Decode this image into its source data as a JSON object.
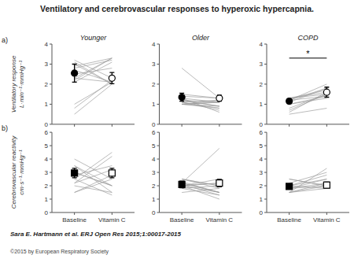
{
  "title": "Ventilatory and cerebrovascular responses to hyperoxic hypercapnia.",
  "subtitle": "Sara E. Hartmann et al. ERJ Open Res 2015;1:00017-2015",
  "copyright": "©2015 by European Respiratory Society",
  "chart_data": [
    {
      "type": "line",
      "title": "Younger",
      "panel_label": "a)",
      "ylabel": "Ventilatory response\nL·min⁻¹·mmHg⁻¹",
      "categories": [
        null,
        null
      ],
      "tick_labels": "y",
      "ylim": [
        0,
        4
      ],
      "yticks": [
        0,
        1,
        2,
        3,
        4
      ],
      "grid": false,
      "color": "#999999",
      "series": [
        {
          "values": [
            2.2,
            3.3
          ]
        },
        {
          "values": [
            2.3,
            2.1
          ]
        },
        {
          "values": [
            2.1,
            3.1
          ]
        },
        {
          "values": [
            2.9,
            3.3
          ]
        },
        {
          "values": [
            3.1,
            2.0
          ]
        },
        {
          "values": [
            2.8,
            3.2
          ]
        },
        {
          "values": [
            2.5,
            2.8
          ]
        },
        {
          "values": [
            3.0,
            2.0
          ]
        },
        {
          "values": [
            2.3,
            3.3
          ]
        },
        {
          "values": [
            2.7,
            2.1
          ]
        },
        {
          "values": [
            3.2,
            2.3
          ]
        },
        {
          "values": [
            0.8,
            2.2
          ]
        },
        {
          "values": [
            0.5,
            2.0
          ]
        },
        {
          "values": [
            1.0,
            2.1
          ]
        },
        {
          "type": "scatter",
          "marker": "circle",
          "colors": [
            "#000000",
            "#ffffff"
          ],
          "values": [
            2.55,
            2.3
          ],
          "errors": [
            0.45,
            0.28
          ]
        }
      ]
    },
    {
      "type": "line",
      "title": "Older",
      "categories": [
        null,
        null
      ],
      "tick_labels": "y",
      "ylim": [
        0,
        4
      ],
      "yticks": [
        0,
        1,
        2,
        3,
        4
      ],
      "grid": false,
      "color": "#999999",
      "series": [
        {
          "values": [
            1.0,
            0.9
          ]
        },
        {
          "values": [
            1.1,
            0.7
          ]
        },
        {
          "values": [
            1.0,
            0.8
          ]
        },
        {
          "values": [
            1.2,
            1.1
          ]
        },
        {
          "values": [
            1.5,
            1.3
          ]
        },
        {
          "values": [
            1.0,
            1.2
          ]
        },
        {
          "values": [
            1.3,
            0.6
          ]
        },
        {
          "values": [
            1.1,
            0.8
          ]
        },
        {
          "values": [
            1.0,
            1.1
          ]
        },
        {
          "values": [
            1.4,
            1.3
          ]
        },
        {
          "values": [
            1.2,
            0.9
          ]
        },
        {
          "values": [
            1.3,
            1.1
          ]
        },
        {
          "values": [
            2.8,
            1.3
          ]
        },
        {
          "values": [
            1.1,
            1.2
          ]
        },
        {
          "values": [
            1.0,
            1.1
          ]
        },
        {
          "values": [
            1.2,
            0.9
          ]
        },
        {
          "type": "scatter",
          "marker": "circle",
          "colors": [
            "#000000",
            "#ffffff"
          ],
          "values": [
            1.35,
            1.3
          ],
          "errors": [
            0.2,
            0.15
          ]
        }
      ]
    },
    {
      "type": "line",
      "title": "COPD",
      "categories": [
        null,
        null
      ],
      "tick_labels": "y",
      "ylim": [
        0,
        4
      ],
      "yticks": [
        0,
        1,
        2,
        3,
        4
      ],
      "grid": false,
      "color": "#999999",
      "significance": {
        "label": "*",
        "y": 3.3
      },
      "series": [
        {
          "values": [
            0.7,
            1.5
          ]
        },
        {
          "values": [
            1.0,
            1.4
          ]
        },
        {
          "values": [
            1.2,
            1.8
          ]
        },
        {
          "values": [
            1.3,
            1.5
          ]
        },
        {
          "values": [
            0.6,
            1.6
          ]
        },
        {
          "values": [
            1.2,
            2.0
          ]
        },
        {
          "values": [
            1.0,
            1.3
          ]
        },
        {
          "values": [
            1.3,
            1.7
          ]
        },
        {
          "values": [
            0.8,
            1.5
          ]
        },
        {
          "values": [
            1.2,
            1.4
          ]
        },
        {
          "values": [
            1.3,
            1.6
          ]
        },
        {
          "values": [
            1.1,
            1.8
          ]
        },
        {
          "values": [
            0.5,
            0.8
          ]
        },
        {
          "type": "scatter",
          "marker": "circle",
          "colors": [
            "#000000",
            "#ffffff"
          ],
          "values": [
            1.15,
            1.6
          ],
          "errors": [
            0.12,
            0.25
          ]
        }
      ]
    },
    {
      "type": "line",
      "panel_label": "b)",
      "ylabel": "Cerebrovascular reactivity\ncm·s⁻¹·mmHg⁻¹",
      "categories": [
        "Baseline",
        "Vitamin C"
      ],
      "ylim": [
        0,
        6
      ],
      "yticks": [
        0,
        1,
        2,
        3,
        4,
        5,
        6
      ],
      "grid": false,
      "color": "#999999",
      "series": [
        {
          "values": [
            2.0,
            1.5
          ]
        },
        {
          "values": [
            3.5,
            2.0
          ]
        },
        {
          "values": [
            2.5,
            1.3
          ]
        },
        {
          "values": [
            4.0,
            2.5
          ]
        },
        {
          "values": [
            2.2,
            4.2
          ]
        },
        {
          "values": [
            3.0,
            2.0
          ]
        },
        {
          "values": [
            1.5,
            2.5
          ]
        },
        {
          "values": [
            2.5,
            4.5
          ]
        },
        {
          "values": [
            3.0,
            2.0
          ]
        },
        {
          "values": [
            2.8,
            3.5
          ]
        },
        {
          "values": [
            1.5,
            2.8
          ]
        },
        {
          "values": [
            3.5,
            1.5
          ]
        },
        {
          "values": [
            2.2,
            3.2
          ]
        },
        {
          "type": "scatter",
          "marker": "square",
          "colors": [
            "#000000",
            "#ffffff"
          ],
          "values": [
            2.95,
            2.95
          ],
          "errors": [
            0.35,
            0.35
          ]
        }
      ]
    },
    {
      "type": "line",
      "categories": [
        "Baseline",
        "Vitamin C"
      ],
      "ylim": [
        0,
        6
      ],
      "yticks": [
        0,
        1,
        2,
        3,
        4,
        5,
        6
      ],
      "grid": false,
      "color": "#999999",
      "series": [
        {
          "values": [
            2.0,
            1.5
          ]
        },
        {
          "values": [
            2.5,
            2.0
          ]
        },
        {
          "values": [
            2.0,
            1.0
          ]
        },
        {
          "values": [
            2.2,
            1.5
          ]
        },
        {
          "values": [
            1.8,
            1.3
          ]
        },
        {
          "values": [
            2.2,
            4.8
          ]
        },
        {
          "values": [
            2.5,
            2.0
          ]
        },
        {
          "values": [
            1.5,
            1.8
          ]
        },
        {
          "values": [
            2.3,
            1.5
          ]
        },
        {
          "values": [
            2.0,
            2.2
          ]
        },
        {
          "values": [
            2.1,
            1.3
          ]
        },
        {
          "values": [
            2.0,
            2.5
          ]
        },
        {
          "values": [
            1.8,
            2.0
          ]
        },
        {
          "values": [
            2.2,
            1.5
          ]
        },
        {
          "values": [
            2.5,
            1.8
          ]
        },
        {
          "values": [
            2.0,
            2.2
          ]
        },
        {
          "type": "scatter",
          "marker": "square",
          "colors": [
            "#000000",
            "#ffffff"
          ],
          "values": [
            2.1,
            2.2
          ],
          "errors": [
            0.25,
            0.28
          ]
        }
      ]
    },
    {
      "type": "line",
      "categories": [
        "Baseline",
        "Vitamin C"
      ],
      "ylim": [
        0,
        6
      ],
      "yticks": [
        0,
        1,
        2,
        3,
        4,
        5,
        6
      ],
      "grid": false,
      "color": "#999999",
      "series": [
        {
          "values": [
            1.5,
            1.8
          ]
        },
        {
          "values": [
            1.8,
            2.0
          ]
        },
        {
          "values": [
            1.5,
            3.3
          ]
        },
        {
          "values": [
            2.0,
            2.5
          ]
        },
        {
          "values": [
            2.5,
            2.0
          ]
        },
        {
          "values": [
            1.8,
            2.2
          ]
        },
        {
          "values": [
            2.0,
            2.8
          ]
        },
        {
          "values": [
            1.5,
            2.0
          ]
        },
        {
          "values": [
            2.2,
            3.0
          ]
        },
        {
          "values": [
            1.8,
            2.5
          ]
        },
        {
          "values": [
            2.5,
            2.0
          ]
        },
        {
          "values": [
            1.5,
            2.2
          ]
        },
        {
          "values": [
            2.0,
            1.8
          ]
        },
        {
          "type": "scatter",
          "marker": "square",
          "colors": [
            "#000000",
            "#ffffff"
          ],
          "values": [
            1.95,
            2.05
          ],
          "errors": [
            0.18,
            0.22
          ]
        }
      ]
    }
  ]
}
